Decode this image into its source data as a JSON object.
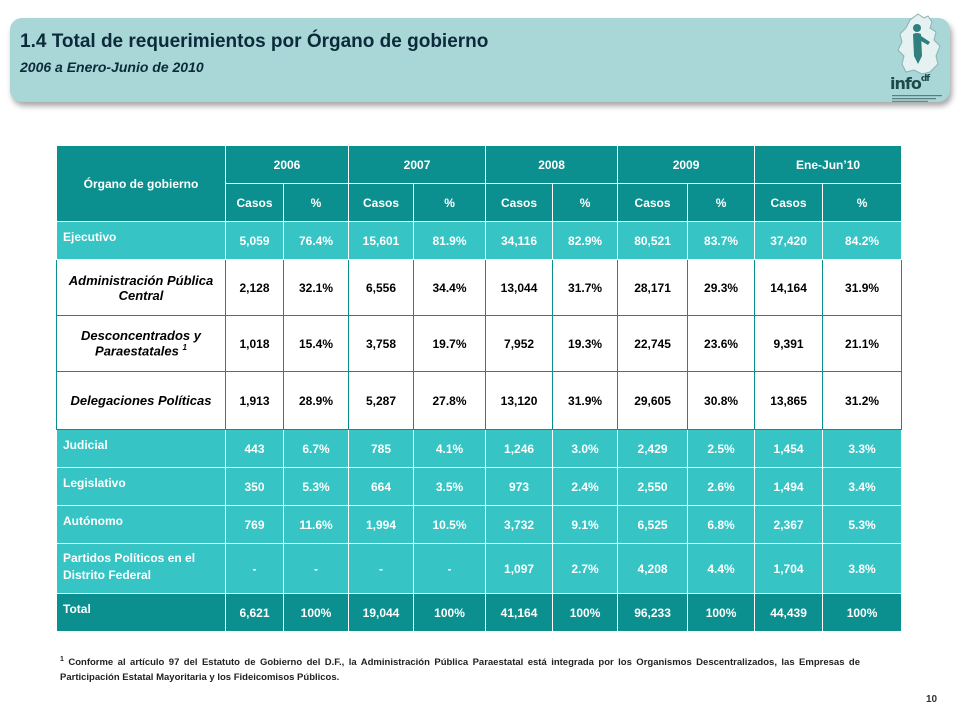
{
  "header": {
    "title": "1.4 Total de requerimientos por Órgano de gobierno",
    "subtitle": "2006 a Enero-Junio de 2010",
    "logo_text": "info",
    "logo_suffix": "df"
  },
  "table": {
    "row_header": "Órgano de gobierno",
    "years": [
      "2006",
      "2007",
      "2008",
      "2009",
      "Ene-Jun’10"
    ],
    "sub_casos": "Casos",
    "sub_pct": "%",
    "rows": [
      {
        "name": "Ejecutivo",
        "values": [
          "5,059",
          "76.4%",
          "15,601",
          "81.9%",
          "34,116",
          "82.9%",
          "80,521",
          "83.7%",
          "37,420",
          "84.2%"
        ]
      },
      {
        "name": "Administración Pública Central",
        "values": [
          "2,128",
          "32.1%",
          "6,556",
          "34.4%",
          "13,044",
          "31.7%",
          "28,171",
          "29.3%",
          "14,164",
          "31.9%"
        ]
      },
      {
        "name": "Desconcentrados y Paraestatales",
        "sup": "1",
        "values": [
          "1,018",
          "15.4%",
          "3,758",
          "19.7%",
          "7,952",
          "19.3%",
          "22,745",
          "23.6%",
          "9,391",
          "21.1%"
        ]
      },
      {
        "name": "Delegaciones Políticas",
        "values": [
          "1,913",
          "28.9%",
          "5,287",
          "27.8%",
          "13,120",
          "31.9%",
          "29,605",
          "30.8%",
          "13,865",
          "31.2%"
        ]
      },
      {
        "name": "Judicial",
        "values": [
          "443",
          "6.7%",
          "785",
          "4.1%",
          "1,246",
          "3.0%",
          "2,429",
          "2.5%",
          "1,454",
          "3.3%"
        ]
      },
      {
        "name": "Legislativo",
        "values": [
          "350",
          "5.3%",
          "664",
          "3.5%",
          "973",
          "2.4%",
          "2,550",
          "2.6%",
          "1,494",
          "3.4%"
        ]
      },
      {
        "name": "Autónomo",
        "values": [
          "769",
          "11.6%",
          "1,994",
          "10.5%",
          "3,732",
          "9.1%",
          "6,525",
          "6.8%",
          "2,367",
          "5.3%"
        ]
      },
      {
        "name": "Partidos Políticos en el Distrito Federal",
        "values": [
          "-",
          "-",
          "-",
          "-",
          "1,097",
          "2.7%",
          "4,208",
          "4.4%",
          "1,704",
          "3.8%"
        ]
      },
      {
        "name": "Total",
        "values": [
          "6,621",
          "100%",
          "19,044",
          "100%",
          "41,164",
          "100%",
          "96,233",
          "100%",
          "44,439",
          "100%"
        ]
      }
    ]
  },
  "footnote": {
    "marker": "1",
    "text": "Conforme al artículo 97 del Estatuto de Gobierno del D.F., la Administración Pública Paraestatal está integrada por los Organismos Descentralizados, las Empresas de Participación Estatal Mayoritaria y los Fideicomisos Públicos."
  },
  "page_number": "10",
  "colors": {
    "banner": "#a9d6d6",
    "header_dark_teal": "#0c8f8f",
    "row_teal": "#36c4c4",
    "title_text": "#0b2a3b"
  }
}
